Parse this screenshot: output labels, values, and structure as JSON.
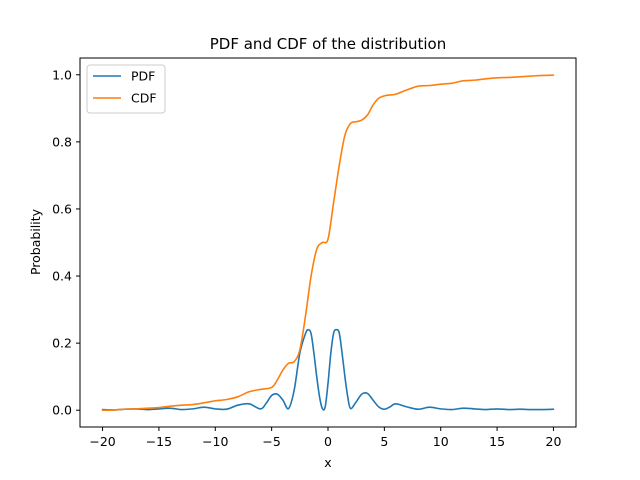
{
  "chart_data": {
    "type": "line",
    "title": "PDF and CDF of the distribution",
    "xlabel": "x",
    "ylabel": "Probability",
    "xlim": [
      -22,
      22
    ],
    "ylim": [
      -0.05,
      1.05
    ],
    "xticks": [
      -20,
      -15,
      -10,
      -5,
      0,
      5,
      10,
      15,
      20
    ],
    "xtick_labels": [
      "−20",
      "−15",
      "−10",
      "−5",
      "0",
      "5",
      "10",
      "15",
      "20"
    ],
    "yticks": [
      0.0,
      0.2,
      0.4,
      0.6,
      0.8,
      1.0
    ],
    "ytick_labels": [
      "0.0",
      "0.2",
      "0.4",
      "0.6",
      "0.8",
      "1.0"
    ],
    "grid": false,
    "legend_position": "top-left",
    "series": [
      {
        "name": "PDF",
        "color": "#1f77b4",
        "x": [
          -20,
          -19,
          -18,
          -17,
          -16,
          -15,
          -14,
          -13,
          -12,
          -11,
          -10,
          -9,
          -8,
          -7,
          -6,
          -5.5,
          -5,
          -4.5,
          -4,
          -3.5,
          -3,
          -2.5,
          -2,
          -1.75,
          -1.5,
          -1.25,
          -1,
          -0.75,
          -0.5,
          -0.25,
          0,
          0.25,
          0.5,
          0.75,
          1,
          1.25,
          1.5,
          1.75,
          2,
          2.5,
          3,
          3.5,
          4,
          4.5,
          5,
          5.5,
          6,
          7,
          8,
          9,
          10,
          11,
          12,
          13,
          14,
          15,
          16,
          17,
          18,
          19,
          20
        ],
        "y": [
          0.002,
          0.001,
          0.003,
          0.004,
          0.002,
          0.004,
          0.006,
          0.002,
          0.004,
          0.009,
          0.004,
          0.003,
          0.015,
          0.019,
          0.004,
          0.02,
          0.044,
          0.048,
          0.03,
          0.005,
          0.06,
          0.17,
          0.228,
          0.24,
          0.228,
          0.17,
          0.1,
          0.04,
          0.005,
          0.01,
          0.08,
          0.17,
          0.23,
          0.24,
          0.23,
          0.17,
          0.1,
          0.04,
          0.005,
          0.025,
          0.048,
          0.05,
          0.03,
          0.01,
          0.003,
          0.01,
          0.019,
          0.01,
          0.003,
          0.009,
          0.004,
          0.002,
          0.006,
          0.004,
          0.002,
          0.004,
          0.002,
          0.003,
          0.002,
          0.002,
          0.003
        ]
      },
      {
        "name": "CDF",
        "color": "#ff7f0e",
        "x": [
          -20,
          -19,
          -18,
          -17,
          -16,
          -15,
          -14,
          -13,
          -12,
          -11,
          -10,
          -9,
          -8,
          -7,
          -6,
          -5,
          -4.5,
          -4,
          -3.5,
          -3,
          -2.5,
          -2,
          -1.5,
          -1,
          -0.5,
          0,
          0.5,
          1,
          1.5,
          2,
          2.5,
          3,
          3.5,
          4,
          4.5,
          5,
          5.5,
          6,
          7,
          8,
          9,
          10,
          11,
          12,
          13,
          14,
          15,
          16,
          17,
          18,
          19,
          20
        ],
        "y": [
          0.0,
          0.001,
          0.003,
          0.004,
          0.006,
          0.008,
          0.012,
          0.015,
          0.017,
          0.022,
          0.028,
          0.032,
          0.04,
          0.055,
          0.062,
          0.068,
          0.09,
          0.12,
          0.14,
          0.145,
          0.18,
          0.28,
          0.4,
          0.48,
          0.5,
          0.51,
          0.62,
          0.73,
          0.82,
          0.855,
          0.86,
          0.865,
          0.88,
          0.91,
          0.93,
          0.937,
          0.94,
          0.942,
          0.955,
          0.966,
          0.968,
          0.972,
          0.975,
          0.982,
          0.984,
          0.988,
          0.991,
          0.992,
          0.994,
          0.996,
          0.998,
          0.999
        ]
      }
    ]
  }
}
